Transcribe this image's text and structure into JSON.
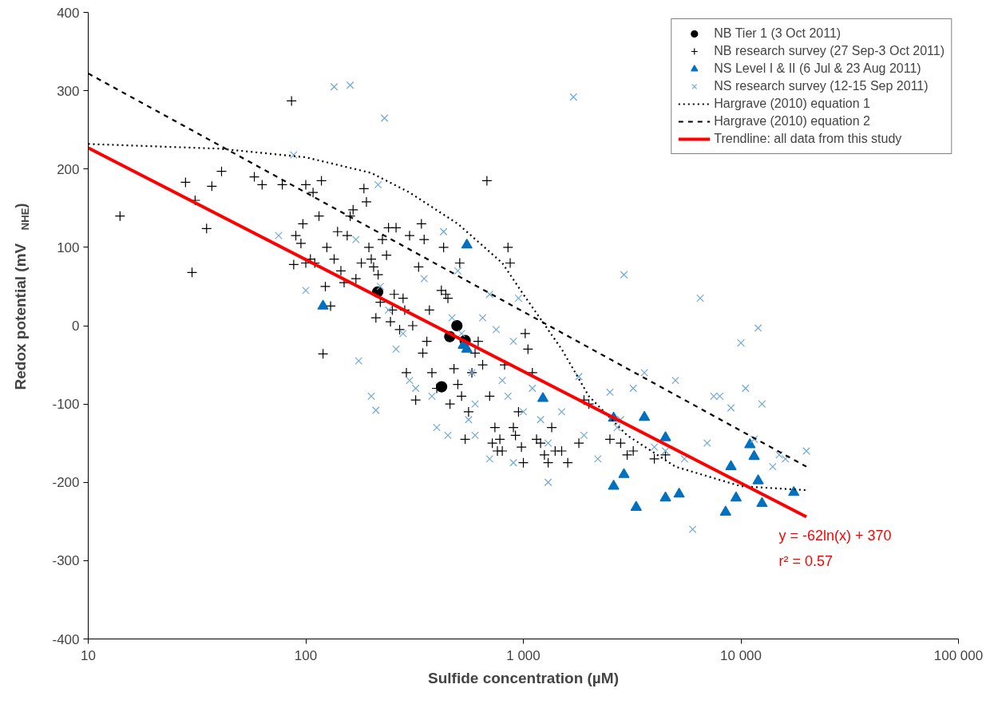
{
  "chart_data": {
    "type": "scatter",
    "xlabel": "Sulfide concentration (µM)",
    "ylabel": "Redox potential (mV$_{NHE}$)",
    "log": "x",
    "xlim": [
      10,
      100000
    ],
    "xticks": [
      {
        "value": 10,
        "label": "10"
      },
      {
        "value": 100,
        "label": "100"
      },
      {
        "value": 1000,
        "label": "1 000"
      },
      {
        "value": 10000,
        "label": "10 000"
      },
      {
        "value": 100000,
        "label": "100 000"
      }
    ],
    "ylim": [
      -400,
      400
    ],
    "yticks": [
      -400,
      -300,
      -200,
      -100,
      0,
      100,
      200,
      300,
      400
    ],
    "grid": false,
    "legend": "top right",
    "annotations": [
      "y = -62ln(x) + 370",
      "r² = 0.57"
    ],
    "series": [
      {
        "name": "NB Tier 1 (3 Oct 2011)",
        "type": "scatter",
        "marker": "circle",
        "color": "#000000",
        "x": [
          214,
          459,
          495,
          540,
          421
        ],
        "values": [
          43,
          -14,
          0,
          -19,
          -78
        ]
      },
      {
        "name": "NB research survey (27 Sep-3 Oct 2011)",
        "type": "scatter",
        "marker": "cross",
        "color": "#000000",
        "x": [
          14,
          28,
          30,
          31,
          35,
          37,
          41,
          58,
          63,
          78,
          86,
          88,
          90,
          95,
          97,
          100,
          100,
          105,
          108,
          110,
          115,
          118,
          120,
          123,
          125,
          130,
          135,
          140,
          145,
          150,
          155,
          160,
          165,
          170,
          180,
          185,
          190,
          195,
          200,
          205,
          210,
          215,
          220,
          225,
          235,
          240,
          245,
          250,
          255,
          260,
          270,
          280,
          285,
          290,
          300,
          310,
          320,
          330,
          340,
          345,
          350,
          360,
          370,
          380,
          400,
          420,
          430,
          440,
          450,
          460,
          480,
          500,
          510,
          520,
          540,
          560,
          580,
          600,
          620,
          650,
          680,
          700,
          720,
          740,
          760,
          780,
          800,
          820,
          850,
          870,
          900,
          920,
          950,
          980,
          1000,
          1020,
          1050,
          1100,
          1150,
          1200,
          1250,
          1300,
          1350,
          1400,
          1500,
          1600,
          1800,
          1900,
          2000,
          2500,
          2800,
          3000,
          3200,
          4000,
          4500
        ],
        "values": [
          140,
          183,
          68,
          160,
          124,
          178,
          197,
          190,
          180,
          180,
          287,
          78,
          115,
          105,
          130,
          80,
          180,
          85,
          170,
          80,
          140,
          185,
          -36,
          50,
          100,
          25,
          85,
          120,
          70,
          55,
          115,
          140,
          148,
          60,
          80,
          175,
          158,
          100,
          85,
          75,
          10,
          65,
          30,
          110,
          90,
          125,
          5,
          20,
          40,
          125,
          -5,
          35,
          20,
          -60,
          115,
          0,
          -95,
          75,
          130,
          -35,
          110,
          -20,
          20,
          -60,
          -80,
          45,
          100,
          40,
          35,
          -100,
          -55,
          -75,
          80,
          -90,
          -145,
          -110,
          -60,
          -35,
          -20,
          -50,
          185,
          -90,
          -150,
          -130,
          -160,
          -145,
          -160,
          -50,
          100,
          80,
          -130,
          -140,
          -110,
          -155,
          -175,
          -10,
          -30,
          -60,
          -145,
          -150,
          -165,
          -175,
          -130,
          -160,
          -160,
          -175,
          -150,
          -95,
          -100,
          -145,
          -150,
          -165,
          -160,
          -170,
          -165
        ]
      },
      {
        "name": "NS Level I & II (6 Jul & 23 Aug 2011)",
        "type": "scatter",
        "marker": "triangle",
        "color": "#0070c0",
        "x": [
          120,
          550,
          530,
          550,
          1230,
          2600,
          2600,
          2900,
          3300,
          3600,
          4500,
          4500,
          5200,
          8500,
          9000,
          9500,
          11000,
          11500,
          12000,
          12500,
          17500
        ],
        "values": [
          25,
          103,
          -25,
          -30,
          -93,
          -118,
          -205,
          -190,
          -232,
          -117,
          -143,
          -220,
          -215,
          -238,
          -180,
          -220,
          -152,
          -167,
          -198,
          -227,
          -213
        ]
      },
      {
        "name": "NS research survey (12-15 Sep 2011)",
        "type": "scatter",
        "marker": "x",
        "color": "#6fa8dc",
        "x": [
          75,
          88,
          100,
          135,
          160,
          170,
          175,
          200,
          210,
          215,
          220,
          230,
          240,
          260,
          280,
          300,
          320,
          350,
          380,
          400,
          430,
          450,
          470,
          500,
          520,
          560,
          580,
          600,
          650,
          700,
          750,
          800,
          850,
          900,
          950,
          1000,
          1100,
          1200,
          1300,
          1500,
          1700,
          1800,
          1900,
          2200,
          2500,
          2700,
          2900,
          3200,
          3600,
          4000,
          4500,
          5000,
          5500,
          6000,
          6500,
          7000,
          7500,
          8000,
          9000,
          10000,
          10500,
          11500,
          12000,
          12500,
          14000,
          15000,
          16000,
          20000,
          2800,
          600,
          1300,
          700,
          900
        ],
        "values": [
          115,
          218,
          45,
          305,
          307,
          110,
          -45,
          -90,
          -108,
          180,
          50,
          265,
          20,
          -30,
          -10,
          -70,
          -80,
          60,
          -90,
          -130,
          120,
          -140,
          10,
          70,
          -10,
          -120,
          -60,
          -100,
          10,
          40,
          -5,
          -70,
          -90,
          -20,
          35,
          -110,
          -80,
          -120,
          -150,
          -110,
          292,
          -65,
          -140,
          -170,
          -85,
          -130,
          65,
          -80,
          -60,
          -155,
          -160,
          -70,
          -170,
          -260,
          35,
          -150,
          -90,
          -90,
          -105,
          -22,
          -80,
          -145,
          -3,
          -100,
          -180,
          -165,
          -170,
          -160,
          -120,
          -140,
          -200,
          -170,
          -175
        ]
      },
      {
        "name": "Hargrave (2010) equation 1",
        "type": "line",
        "line_style": "dotted",
        "marker": "none",
        "color": "#000000",
        "x": [
          10,
          40,
          100,
          200,
          300,
          500,
          800,
          1000,
          1500,
          2000,
          3000,
          5000,
          10000,
          20000
        ],
        "values": [
          232,
          226,
          215,
          195,
          170,
          130,
          80,
          40,
          -30,
          -90,
          -140,
          -180,
          -205,
          -210
        ]
      },
      {
        "name": "Hargrave (2010) equation 2",
        "type": "line",
        "line_style": "dashed",
        "marker": "none",
        "color": "#000000",
        "x": [
          10,
          20000
        ],
        "values": [
          322,
          -180
        ]
      },
      {
        "name": "Trendline: all data from this study",
        "type": "line",
        "line_style": "solid",
        "marker": "none",
        "color": "#ff0000",
        "x": [
          10,
          20000
        ],
        "values": [
          227,
          -244
        ]
      }
    ]
  }
}
